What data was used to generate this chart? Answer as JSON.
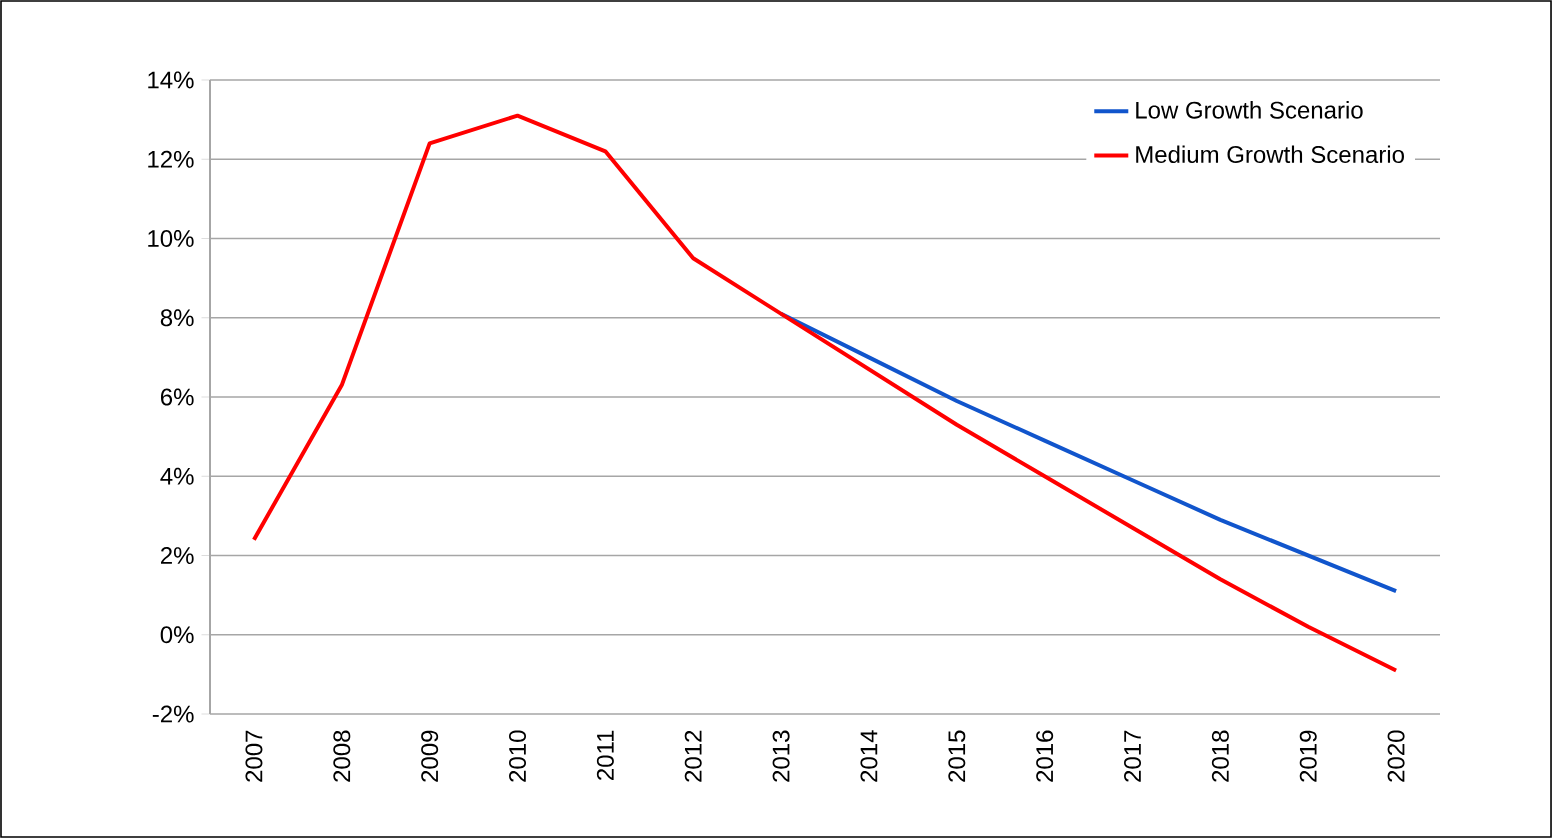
{
  "chart_data": {
    "type": "line",
    "categories": [
      "2007",
      "2008",
      "2009",
      "2010",
      "2011",
      "2012",
      "2013",
      "2014",
      "2015",
      "2016",
      "2017",
      "2018",
      "2019",
      "2020"
    ],
    "series": [
      {
        "name": "Low Growth Scenario",
        "color": "#1155cc",
        "values": [
          null,
          null,
          null,
          null,
          null,
          null,
          8.1,
          7.0,
          5.9,
          4.9,
          3.9,
          2.9,
          2.0,
          1.1
        ]
      },
      {
        "name": "Medium Growth Scenario",
        "color": "#ff0000",
        "values": [
          2.4,
          6.3,
          12.4,
          13.1,
          12.2,
          9.5,
          8.1,
          6.7,
          5.3,
          4.0,
          2.7,
          1.4,
          0.2,
          -0.9
        ]
      }
    ],
    "ylim": [
      -2,
      14
    ],
    "yticks": [
      {
        "value": -2,
        "label": "-2%"
      },
      {
        "value": 0,
        "label": "0%"
      },
      {
        "value": 2,
        "label": "2%"
      },
      {
        "value": 4,
        "label": "4%"
      },
      {
        "value": 6,
        "label": "6%"
      },
      {
        "value": 8,
        "label": "8%"
      },
      {
        "value": 10,
        "label": "10%"
      },
      {
        "value": 12,
        "label": "12%"
      },
      {
        "value": 14,
        "label": "14%"
      }
    ],
    "grid": "y",
    "legend": "top right",
    "marker": "none",
    "line_style": "solid"
  }
}
